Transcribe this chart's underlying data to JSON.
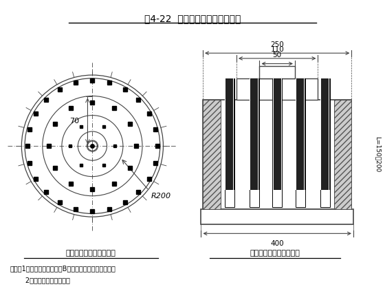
{
  "title": "图4-22  竖井开挖炮眼平面布置图",
  "bg_color": "#ffffff",
  "left_label": "竖井开挖炮眼平面布置图",
  "right_label": "竖井开挖炮眼剖面布置图",
  "note_line1": "说明：1、本图以设计图竖井B型开挖断面进行炮眼布置。",
  "note_line2": "       2、本图尺寸以厘米计。",
  "circle_radii": [
    0.88,
    0.62,
    0.38,
    0.18,
    0.06
  ],
  "outer_dot_count": 24,
  "outer_dot_ring_r": 0.81,
  "mid_dot_count": 12,
  "mid_dot_ring_r": 0.54,
  "inner_dot_count": 6,
  "inner_dot_ring_r": 0.28,
  "dim_label_70": "70",
  "dim_label_R200": "R200",
  "dim_250": "250",
  "dim_110": "110",
  "dim_50": "50",
  "dim_400": "400",
  "dim_L": "L=150～200",
  "foreground_color": "#000000",
  "line_color": "#444444"
}
